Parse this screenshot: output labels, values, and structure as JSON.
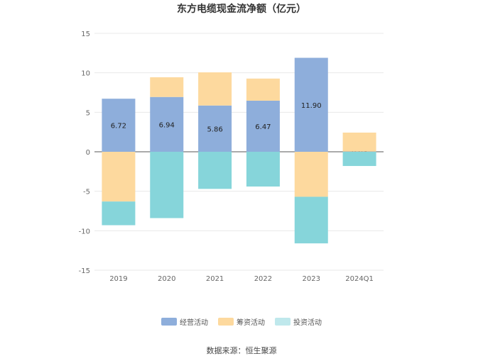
{
  "chart_data": {
    "type": "bar",
    "stacked": true,
    "title": "东方电缆现金流净额（亿元）",
    "categories": [
      "2019",
      "2020",
      "2021",
      "2022",
      "2023",
      "2024Q1"
    ],
    "series": [
      {
        "name": "经营活动",
        "color": "#8eaedb",
        "values": [
          6.72,
          6.94,
          5.86,
          6.47,
          11.9,
          0.03
        ],
        "show_labels": true
      },
      {
        "name": "筹资活动",
        "color": "#fdd99e",
        "values": [
          -6.3,
          2.5,
          4.2,
          2.8,
          -5.7,
          2.4
        ],
        "show_labels": false
      },
      {
        "name": "投资活动",
        "color": "#86d5da",
        "values": [
          -3.0,
          -8.4,
          -4.7,
          -4.4,
          -5.9,
          -1.8
        ],
        "show_labels": false
      }
    ],
    "ylim": [
      -15,
      15
    ],
    "yticks": [
      15,
      10,
      5,
      0,
      -5,
      -10,
      -15
    ],
    "grid": true,
    "legend_position": "bottom"
  },
  "legend": [
    {
      "label": "经营活动",
      "color": "#8eaedb"
    },
    {
      "label": "筹资活动",
      "color": "#fdd99e"
    },
    {
      "label": "投资活动",
      "color": "#bfe8ec"
    }
  ],
  "source": "数据来源：恒生聚源"
}
